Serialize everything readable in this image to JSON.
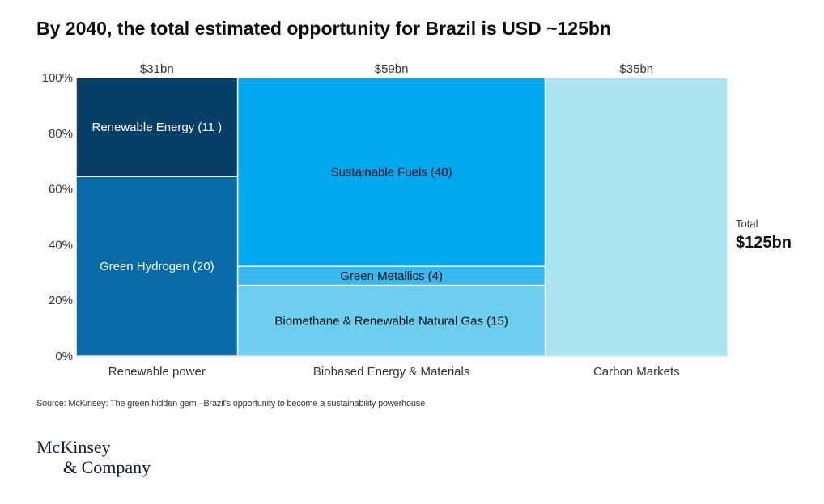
{
  "title": "By 2040, the total estimated opportunity for Brazil is USD ~125bn",
  "source": "Source: McKinsey: The green hidden gem –Brazil's opportunity to become a sustainability powerhouse",
  "logo": {
    "line1": "McKinsey",
    "line2": "& Company"
  },
  "chart_data": {
    "type": "marimekko",
    "ylim": [
      0,
      100
    ],
    "yticks": [
      "0%",
      "20%",
      "40%",
      "60%",
      "80%",
      "100%"
    ],
    "grid": false,
    "columns": [
      {
        "name": "Renewable power",
        "total": 31,
        "total_label": "$31bn",
        "segments": [
          {
            "label": "Green Hydrogen (20)",
            "value": 20,
            "color": "#0a6aa5",
            "text_color": "#ffffff"
          },
          {
            "label": "Renewable Energy (11 )",
            "value": 11,
            "color": "#073f66",
            "text_color": "#ffffff"
          }
        ]
      },
      {
        "name": "Biobased Energy & Materials",
        "total": 59,
        "total_label": "$59bn",
        "segments": [
          {
            "label": "Biomethane & Renewable Natural Gas (15)",
            "value": 15,
            "color": "#6ccff0",
            "text_color": "#0b0b0b"
          },
          {
            "label": "Green Metallics (4)",
            "value": 4,
            "color": "#38b8ee",
            "text_color": "#0b0b0b"
          },
          {
            "label": "Sustainable Fuels (40)",
            "value": 40,
            "color": "#00a9f0",
            "text_color": "#0b0b0b"
          }
        ]
      },
      {
        "name": "Carbon Markets",
        "total": 35,
        "total_label": "$35bn",
        "segments": [
          {
            "label": "",
            "value": 35,
            "color": "#a9e4f0",
            "text_color": "#0b0b0b"
          }
        ]
      }
    ],
    "total_label": "Total",
    "total_value": "$125bn"
  }
}
